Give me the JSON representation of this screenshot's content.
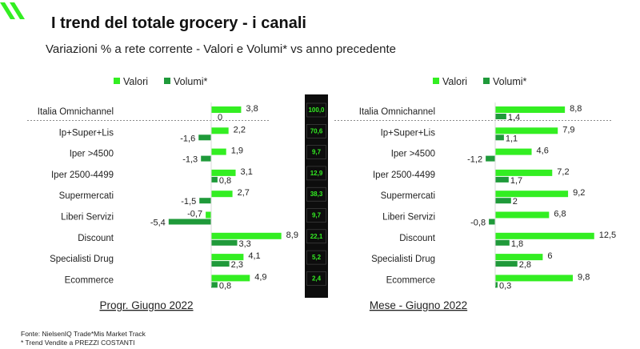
{
  "header": {
    "title": "I trend del totale grocery - i canali",
    "subtitle": "Variazioni % a rete corrente - Valori e Volumi* vs anno precedente"
  },
  "colors": {
    "valori": "#33ee22",
    "volumi": "#1f9a3a",
    "logo": "#33ee22",
    "weights_panel": "#0d0d0d",
    "weights_text": "#33ee22"
  },
  "chart_data": [
    {
      "type": "bar",
      "orientation": "horizontal",
      "title": "Progr. Giugno 2022",
      "categories": [
        "Italia Omnichannel",
        "Ip+Super+Lis",
        "Iper >4500",
        "Iper 2500-4499",
        "Supermercati",
        "Liberi Servizi",
        "Discount",
        "Specialisti Drug",
        "Ecommerce"
      ],
      "series": [
        {
          "name": "Valori",
          "values": [
            3.8,
            2.2,
            1.9,
            3.1,
            2.7,
            -0.7,
            8.9,
            4.1,
            4.9
          ]
        },
        {
          "name": "Volumi*",
          "values": [
            0,
            -1.6,
            -1.3,
            0.8,
            -1.5,
            -5.4,
            3.3,
            2.3,
            0.8
          ]
        }
      ],
      "value_labels": {
        "Valori": [
          "3,8",
          "2,2",
          "1,9",
          "3,1",
          "2,7",
          "-0,7",
          "8,9",
          "4,1",
          "4,9"
        ],
        "Volumi*": [
          "0",
          "-1,6",
          "-1,3",
          "0,8",
          "-1,5",
          "-5,4",
          "3,3",
          "2,3",
          "0,8"
        ]
      },
      "legend": "top"
    },
    {
      "type": "bar",
      "orientation": "horizontal",
      "title": "Mese - Giugno 2022",
      "categories": [
        "Italia Omnichannel",
        "Ip+Super+Lis",
        "Iper >4500",
        "Iper 2500-4499",
        "Supermercati",
        "Liberi Servizi",
        "Discount",
        "Specialisti Drug",
        "Ecommerce"
      ],
      "series": [
        {
          "name": "Valori",
          "values": [
            8.8,
            7.9,
            4.6,
            7.2,
            9.2,
            6.8,
            12.5,
            6.0,
            9.8
          ]
        },
        {
          "name": "Volumi*",
          "values": [
            1.4,
            1.1,
            -1.2,
            1.7,
            2.0,
            -0.8,
            1.8,
            2.8,
            0.3
          ]
        }
      ],
      "value_labels": {
        "Valori": [
          "8,8",
          "7,9",
          "4,6",
          "7,2",
          "9,2",
          "6,8",
          "12,5",
          "6",
          "9,8"
        ],
        "Volumi*": [
          "1,4",
          "1,1",
          "-1,2",
          "1,7",
          "2",
          "-0,8",
          "1,8",
          "2,8",
          "0,3"
        ]
      },
      "legend": "top"
    }
  ],
  "weights": [
    "100,0",
    "70,6",
    "9,7",
    "12,9",
    "38,3",
    "9,7",
    "22,1",
    "5,2",
    "2,4"
  ],
  "footer": {
    "source": "Fonte: NielsenIQ Trade*Mis  Market Track",
    "note": "* Trend Vendite a PREZZI COSTANTI"
  }
}
